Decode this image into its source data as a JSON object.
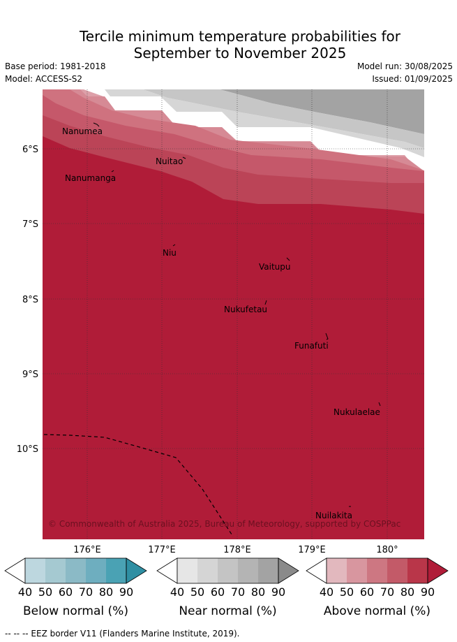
{
  "title_line1": "Tercile minimum temperature probabilities for",
  "title_line2": "September to November 2025",
  "base_period": "Base period: 1981-2018",
  "model": "Model: ACCESS-S2",
  "model_run": "Model run: 30/08/2025",
  "issued": "Issued: 01/09/2025",
  "lon_labels": [
    "176°E",
    "177°E",
    "178°E",
    "179°E",
    "180°"
  ],
  "lat_labels": [
    "6°S",
    "7°S",
    "8°S",
    "9°S",
    "10°S"
  ],
  "islands": [
    "Nanumea",
    "Nuitao",
    "Nanumanga",
    "Niu",
    "Vaitupu",
    "Nukufetau",
    "Funafuti",
    "Nukulaelae",
    "Nuilakita"
  ],
  "copyright": "© Commonwealth of Australia 2025, Bureau of Meteorology, supported by COSPPac",
  "colorbars": [
    {
      "title": "Below normal (%)",
      "ticks": [
        "40",
        "50",
        "60",
        "70",
        "80",
        "90"
      ],
      "colors": [
        "#ffffff",
        "#bdd7df",
        "#a5c9d1",
        "#8bbac6",
        "#6eaebf",
        "#4aa2b4",
        "#2f8fa3"
      ]
    },
    {
      "title": "Near normal (%)",
      "ticks": [
        "40",
        "50",
        "60",
        "70",
        "80",
        "90"
      ],
      "colors": [
        "#ffffff",
        "#e6e6e6",
        "#d5d5d5",
        "#c4c4c4",
        "#b4b4b4",
        "#a3a3a3",
        "#8a8a8a"
      ]
    },
    {
      "title": "Above normal (%)",
      "ticks": [
        "40",
        "50",
        "60",
        "70",
        "80",
        "90"
      ],
      "colors": [
        "#ffffff",
        "#e2b8be",
        "#d8969f",
        "#cd7782",
        "#c35a68",
        "#b93649",
        "#b01c38"
      ]
    }
  ],
  "footer": "--  --  -- EEZ border V11 (Flanders Marine Institute, 2019)."
}
